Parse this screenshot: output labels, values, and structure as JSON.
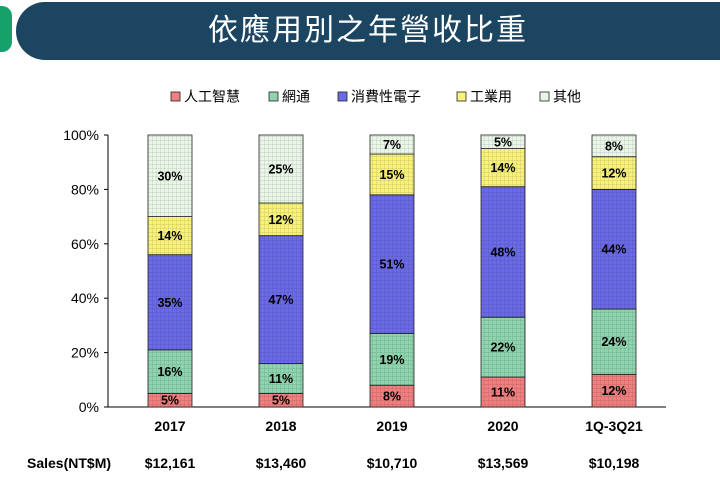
{
  "header": {
    "title": "依應用別之年營收比重"
  },
  "colors": {
    "ai": "#f07f7f",
    "network": "#8ed4ae",
    "consumer": "#6a6ae8",
    "industrial": "#f8f27a",
    "other": "#eaf7e8",
    "banner": "#1c4562",
    "tab": "#16a06a"
  },
  "chart_data": {
    "type": "bar",
    "stacked": true,
    "categories": [
      "2017",
      "2018",
      "2019",
      "2020",
      "1Q-3Q21"
    ],
    "ylim": [
      0,
      100
    ],
    "yticks": [
      "0%",
      "20%",
      "40%",
      "60%",
      "80%",
      "100%"
    ],
    "legend_position": "top",
    "series": [
      {
        "name": "人工智慧",
        "key": "ai",
        "values": [
          5,
          5,
          8,
          11,
          12
        ]
      },
      {
        "name": "網通",
        "key": "network",
        "values": [
          16,
          11,
          19,
          22,
          24
        ]
      },
      {
        "name": "消費性電子",
        "key": "consumer",
        "values": [
          35,
          47,
          51,
          48,
          44
        ]
      },
      {
        "name": "工業用",
        "key": "industrial",
        "values": [
          14,
          12,
          15,
          14,
          12
        ]
      },
      {
        "name": "其他",
        "key": "other",
        "values": [
          30,
          25,
          7,
          5,
          8
        ]
      }
    ],
    "sales": {
      "label": "Sales(NT$M)",
      "values": [
        "$12,161",
        "$13,460",
        "$10,710",
        "$13,569",
        "$10,198"
      ]
    }
  }
}
